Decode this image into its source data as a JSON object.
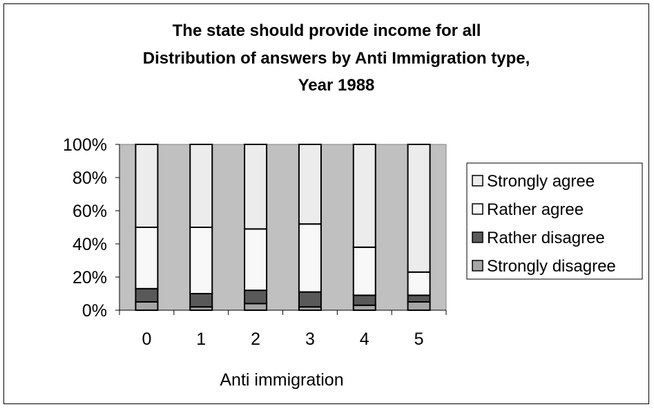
{
  "chart_data": {
    "type": "bar",
    "stacked": "percent",
    "title_lines": [
      "The state should provide income for all",
      "Distribution of answers by Anti Immigration type,",
      "Year 1988"
    ],
    "xlabel": "Anti immigration",
    "ylabel": "",
    "categories": [
      "0",
      "1",
      "2",
      "3",
      "4",
      "5"
    ],
    "y_ticks": [
      "0%",
      "20%",
      "40%",
      "60%",
      "80%",
      "100%"
    ],
    "ylim": [
      0,
      100
    ],
    "legend_position": "right",
    "series": [
      {
        "name": "Strongly disagree",
        "color": "#a6a6a6",
        "values": [
          5,
          2,
          4,
          2,
          3,
          5
        ]
      },
      {
        "name": "Rather disagree",
        "color": "#595959",
        "values": [
          8,
          8,
          8,
          9,
          6,
          4
        ]
      },
      {
        "name": "Rather agree",
        "color": "#f8f8f8",
        "values": [
          37,
          40,
          37,
          41,
          29,
          14
        ]
      },
      {
        "name": "Strongly agree",
        "color": "#ececec",
        "values": [
          50,
          50,
          51,
          48,
          62,
          77
        ]
      }
    ],
    "legend_order": [
      "Strongly agree",
      "Rather agree",
      "Rather disagree",
      "Strongly disagree"
    ],
    "plot_background": "#c0c0c0"
  }
}
